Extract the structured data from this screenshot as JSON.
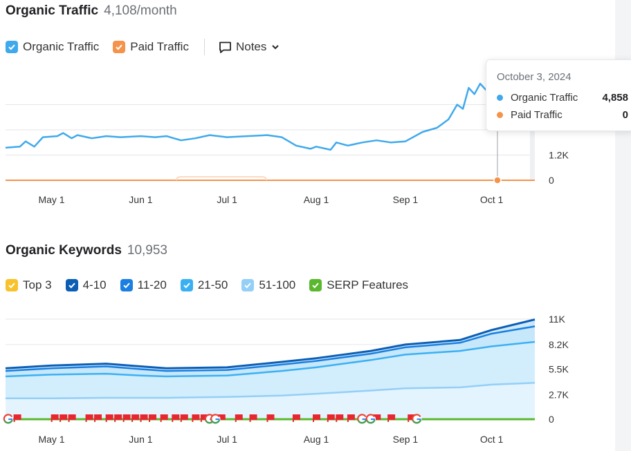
{
  "organic_traffic": {
    "title": "Organic Traffic",
    "value": "4,108/month",
    "legend": {
      "organic": "Organic Traffic",
      "paid": "Paid Traffic",
      "notes": "Notes"
    },
    "tooltip": {
      "date": "October 3, 2024",
      "rows": [
        {
          "label": "Organic Traffic",
          "value": "4,858"
        },
        {
          "label": "Paid Traffic",
          "value": "0"
        }
      ]
    }
  },
  "organic_keywords": {
    "title": "Organic Keywords",
    "value": "10,953",
    "legend": [
      "Top 3",
      "4-10",
      "11-20",
      "21-50",
      "51-100",
      "SERP Features"
    ]
  },
  "colors": {
    "organic": "#3fa9ec",
    "paid": "#f4934b",
    "top3": "#f7c22c",
    "k4_10": "#0c5eb5",
    "k11_20": "#1a7fe0",
    "k21_50": "#3ab0f2",
    "k51_100": "#93cff7",
    "serp": "#5ab82e",
    "flag": "#e8262f"
  },
  "chart_data": [
    {
      "type": "line",
      "title": "Organic Traffic",
      "x_tick_labels": [
        "May 1",
        "Jun 1",
        "Jul 1",
        "Aug 1",
        "Sep 1",
        "Oct 1"
      ],
      "y_tick_labels": [
        "1.2K",
        "0"
      ],
      "y_ticks": [
        1200,
        0
      ],
      "ylim": [
        0,
        4800
      ],
      "x_range": [
        "2024-04-15",
        "2024-10-16"
      ],
      "series": [
        {
          "name": "Organic Traffic",
          "points": [
            [
              "2024-04-15",
              1550
            ],
            [
              "2024-04-20",
              1600
            ],
            [
              "2024-04-22",
              1850
            ],
            [
              "2024-04-25",
              1600
            ],
            [
              "2024-04-28",
              2050
            ],
            [
              "2024-05-03",
              2100
            ],
            [
              "2024-05-05",
              2250
            ],
            [
              "2024-05-08",
              2000
            ],
            [
              "2024-05-10",
              2150
            ],
            [
              "2024-05-15",
              2000
            ],
            [
              "2024-05-20",
              2100
            ],
            [
              "2024-05-25",
              2050
            ],
            [
              "2024-06-01",
              2100
            ],
            [
              "2024-06-06",
              2050
            ],
            [
              "2024-06-10",
              2100
            ],
            [
              "2024-06-15",
              1900
            ],
            [
              "2024-06-20",
              2000
            ],
            [
              "2024-06-25",
              2150
            ],
            [
              "2024-07-01",
              2050
            ],
            [
              "2024-07-08",
              2100
            ],
            [
              "2024-07-15",
              2150
            ],
            [
              "2024-07-20",
              2050
            ],
            [
              "2024-07-25",
              1650
            ],
            [
              "2024-07-30",
              1500
            ],
            [
              "2024-08-01",
              1600
            ],
            [
              "2024-08-06",
              1450
            ],
            [
              "2024-08-08",
              1800
            ],
            [
              "2024-08-12",
              1650
            ],
            [
              "2024-08-17",
              1800
            ],
            [
              "2024-08-22",
              1900
            ],
            [
              "2024-08-27",
              1800
            ],
            [
              "2024-09-01",
              1850
            ],
            [
              "2024-09-07",
              2300
            ],
            [
              "2024-09-12",
              2500
            ],
            [
              "2024-09-16",
              2900
            ],
            [
              "2024-09-19",
              3600
            ],
            [
              "2024-09-21",
              3400
            ],
            [
              "2024-09-23",
              4400
            ],
            [
              "2024-09-25",
              4100
            ],
            [
              "2024-09-27",
              4600
            ],
            [
              "2024-09-29",
              4300
            ],
            [
              "2024-10-01",
              4700
            ],
            [
              "2024-10-03",
              4858
            ]
          ]
        },
        {
          "name": "Paid Traffic",
          "points": [
            [
              "2024-04-15",
              0
            ],
            [
              "2024-10-16",
              0
            ]
          ]
        }
      ]
    },
    {
      "type": "area",
      "title": "Organic Keywords",
      "x_tick_labels": [
        "May 1",
        "Jun 1",
        "Jul 1",
        "Aug 1",
        "Sep 1",
        "Oct 1"
      ],
      "y_tick_labels": [
        "11K",
        "8.2K",
        "5.5K",
        "2.7K",
        "0"
      ],
      "y_ticks": [
        11000,
        8200,
        5500,
        2700,
        0
      ],
      "ylim": [
        0,
        11000
      ],
      "x_range": [
        "2024-04-15",
        "2024-10-16"
      ],
      "series": [
        {
          "name": "4-10",
          "points": [
            [
              "2024-04-15",
              5600
            ],
            [
              "2024-05-01",
              5900
            ],
            [
              "2024-05-20",
              6100
            ],
            [
              "2024-06-01",
              5800
            ],
            [
              "2024-06-10",
              5600
            ],
            [
              "2024-07-01",
              5700
            ],
            [
              "2024-07-20",
              6300
            ],
            [
              "2024-08-01",
              6700
            ],
            [
              "2024-08-20",
              7500
            ],
            [
              "2024-09-01",
              8200
            ],
            [
              "2024-09-20",
              8700
            ],
            [
              "2024-10-01",
              9800
            ],
            [
              "2024-10-16",
              10953
            ]
          ]
        },
        {
          "name": "11-20",
          "points": [
            [
              "2024-04-15",
              5300
            ],
            [
              "2024-05-01",
              5600
            ],
            [
              "2024-05-20",
              5800
            ],
            [
              "2024-06-01",
              5500
            ],
            [
              "2024-06-10",
              5300
            ],
            [
              "2024-07-01",
              5400
            ],
            [
              "2024-07-20",
              6000
            ],
            [
              "2024-08-01",
              6400
            ],
            [
              "2024-08-20",
              7200
            ],
            [
              "2024-09-01",
              7900
            ],
            [
              "2024-09-20",
              8400
            ],
            [
              "2024-10-01",
              9400
            ],
            [
              "2024-10-16",
              10200
            ]
          ]
        },
        {
          "name": "21-50",
          "points": [
            [
              "2024-04-15",
              4700
            ],
            [
              "2024-05-01",
              4900
            ],
            [
              "2024-05-20",
              5000
            ],
            [
              "2024-06-01",
              4800
            ],
            [
              "2024-06-10",
              4700
            ],
            [
              "2024-07-01",
              4800
            ],
            [
              "2024-07-20",
              5300
            ],
            [
              "2024-08-01",
              5700
            ],
            [
              "2024-08-20",
              6500
            ],
            [
              "2024-09-01",
              7100
            ],
            [
              "2024-09-20",
              7500
            ],
            [
              "2024-10-01",
              8000
            ],
            [
              "2024-10-16",
              8500
            ]
          ]
        },
        {
          "name": "51-100",
          "points": [
            [
              "2024-04-15",
              2300
            ],
            [
              "2024-05-01",
              2300
            ],
            [
              "2024-05-20",
              2350
            ],
            [
              "2024-06-01",
              2350
            ],
            [
              "2024-06-10",
              2350
            ],
            [
              "2024-07-01",
              2450
            ],
            [
              "2024-07-20",
              2600
            ],
            [
              "2024-08-01",
              2800
            ],
            [
              "2024-08-20",
              3150
            ],
            [
              "2024-09-01",
              3400
            ],
            [
              "2024-09-20",
              3500
            ],
            [
              "2024-10-01",
              3800
            ],
            [
              "2024-10-16",
              4000
            ]
          ]
        },
        {
          "name": "SERP Features",
          "points": [
            [
              "2024-04-15",
              0
            ],
            [
              "2024-10-16",
              0
            ]
          ]
        }
      ],
      "markers": {
        "flags": [
          "2024-04-19",
          "2024-05-02",
          "2024-05-05",
          "2024-05-08",
          "2024-05-14",
          "2024-05-17",
          "2024-05-21",
          "2024-05-24",
          "2024-05-27",
          "2024-05-30",
          "2024-06-02",
          "2024-06-05",
          "2024-06-09",
          "2024-06-13",
          "2024-06-16",
          "2024-06-20",
          "2024-06-23",
          "2024-06-29",
          "2024-07-05",
          "2024-07-10",
          "2024-07-16",
          "2024-07-25",
          "2024-08-01",
          "2024-08-06",
          "2024-08-09",
          "2024-08-13",
          "2024-08-22",
          "2024-08-27",
          "2024-09-03"
        ],
        "google": [
          "2024-04-16",
          "2024-06-25",
          "2024-06-27",
          "2024-08-17",
          "2024-08-20",
          "2024-09-05"
        ]
      }
    }
  ]
}
